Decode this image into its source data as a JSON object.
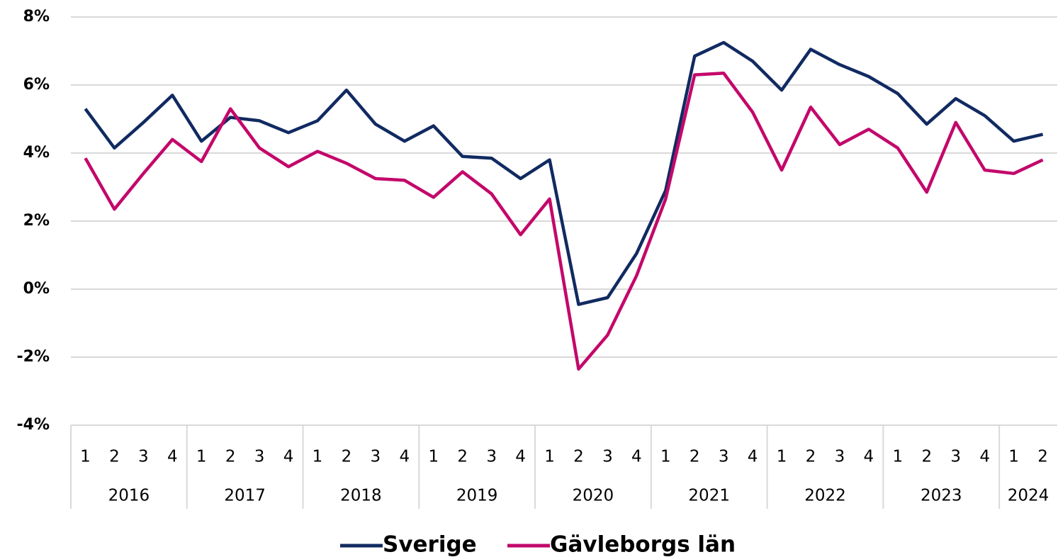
{
  "chart_data": {
    "type": "line",
    "categories": [
      "1",
      "2",
      "3",
      "4",
      "1",
      "2",
      "3",
      "4",
      "1",
      "2",
      "3",
      "4",
      "1",
      "2",
      "3",
      "4",
      "1",
      "2",
      "3",
      "4",
      "1",
      "2",
      "3",
      "4",
      "1",
      "2",
      "3",
      "4",
      "1",
      "2",
      "3",
      "4",
      "1",
      "2"
    ],
    "groups": [
      "2016",
      "2017",
      "2018",
      "2019",
      "2020",
      "2021",
      "2022",
      "2023",
      "2024"
    ],
    "series": [
      {
        "name": "Sverige",
        "color": "#112a61",
        "values": [
          5.3,
          4.15,
          4.9,
          5.7,
          4.35,
          5.05,
          4.95,
          4.6,
          4.95,
          5.85,
          4.85,
          4.35,
          4.8,
          3.9,
          3.85,
          3.25,
          3.8,
          -0.45,
          -0.25,
          1.05,
          2.9,
          6.85,
          7.25,
          6.7,
          5.85,
          7.05,
          6.6,
          6.25,
          5.75,
          4.85,
          5.6,
          5.1,
          4.35,
          4.55
        ]
      },
      {
        "name": "Gävleborgs län",
        "color": "#c3086b",
        "values": [
          3.85,
          2.35,
          3.4,
          4.4,
          3.75,
          5.3,
          4.15,
          3.6,
          4.05,
          3.7,
          3.25,
          3.2,
          2.7,
          3.45,
          2.8,
          1.6,
          2.65,
          -2.35,
          -1.35,
          0.4,
          2.65,
          6.3,
          6.35,
          5.2,
          3.5,
          5.35,
          4.25,
          4.7,
          4.15,
          2.85,
          4.9,
          3.5,
          3.4,
          3.8
        ]
      }
    ],
    "ylim": [
      -4,
      8
    ],
    "yticks": [
      {
        "value": -4,
        "label": "-4%"
      },
      {
        "value": -2,
        "label": "-2%"
      },
      {
        "value": 0,
        "label": "0%"
      },
      {
        "value": 2,
        "label": "2%"
      },
      {
        "value": 4,
        "label": "4%"
      },
      {
        "value": 6,
        "label": "6%"
      },
      {
        "value": 8,
        "label": "8%"
      }
    ],
    "grid": true
  }
}
